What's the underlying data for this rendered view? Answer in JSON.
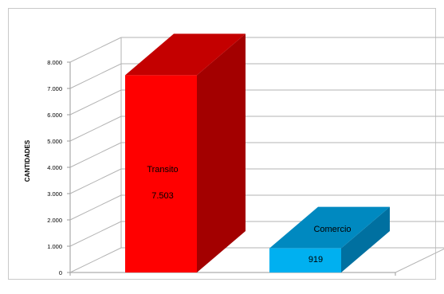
{
  "chart_data": {
    "type": "bar",
    "style": "3d-column",
    "categories": [
      "Transito",
      "Comercio"
    ],
    "values": [
      7503,
      919
    ],
    "value_labels": [
      "7.503",
      "919"
    ],
    "ylabel": "CANTIDADES",
    "ylim": [
      0,
      8000
    ],
    "yticks": [
      "0",
      "1.000",
      "2.000",
      "3.000",
      "4.000",
      "5.000",
      "6.000",
      "7.000",
      "8.000"
    ],
    "grid": true,
    "legend": "none",
    "colors": {
      "Transito": {
        "front": "#ff0000",
        "side": "#a30000",
        "top": "#c40000"
      },
      "Comercio": {
        "front": "#00b0f0",
        "side": "#0070a0",
        "top": "#0089c0"
      },
      "grid": "#b3b3b3",
      "border": "#c8c8c8"
    }
  }
}
